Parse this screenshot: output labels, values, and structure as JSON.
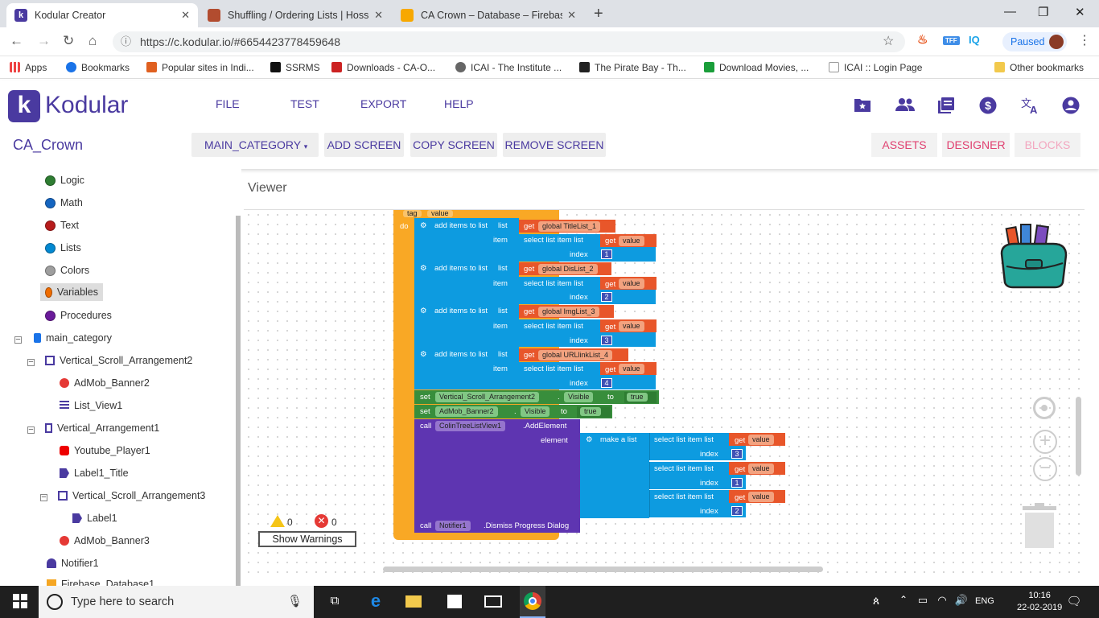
{
  "browser": {
    "tabs": [
      {
        "title": "Kodular Creator",
        "active": true,
        "color": "#4a3aa0"
      },
      {
        "title": "Shuffling / Ordering Lists | Hosse",
        "active": false,
        "color": "#b24c2f"
      },
      {
        "title": "CA Crown – Database – Firebase",
        "active": false,
        "color": "#f7a800"
      }
    ],
    "url": "https://c.kodular.io/#6654423778459648",
    "profile": "Paused",
    "ext_labels": [
      "TFF",
      "IQ"
    ],
    "bookmarks": [
      {
        "label": "Apps",
        "color": "#e44"
      },
      {
        "label": "Bookmarks",
        "color": "#1a73e8"
      },
      {
        "label": "Popular sites in Indi...",
        "color": "#e06020"
      },
      {
        "label": "SSRMS",
        "color": "#111"
      },
      {
        "label": "Downloads - CA-O...",
        "color": "#c22"
      },
      {
        "label": "ICAI - The Institute ...",
        "color": "#666"
      },
      {
        "label": "The Pirate Bay - Th...",
        "color": "#222"
      },
      {
        "label": "Download Movies, ...",
        "color": "#1a9e3a"
      },
      {
        "label": "ICAI :: Login Page",
        "color": "#999"
      },
      {
        "label": "Other bookmarks",
        "color": "#f2c94c"
      }
    ]
  },
  "app": {
    "brand": "Kodular",
    "menu": [
      "FILE",
      "TEST",
      "EXPORT",
      "HELP"
    ],
    "project": "CA_Crown",
    "screen": "MAIN_CATEGORY",
    "screen_caret": "▾",
    "buttons": [
      "ADD SCREEN",
      "COPY SCREEN",
      "REMOVE SCREEN"
    ],
    "right_buttons": [
      {
        "label": "ASSETS",
        "color": "#e04070"
      },
      {
        "label": "DESIGNER",
        "color": "#e04070"
      },
      {
        "label": "BLOCKS",
        "color": "#f3a6bf"
      }
    ],
    "icons": [
      "folder-star-icon",
      "people-icon",
      "book-icon",
      "dollar-icon",
      "translate-icon",
      "account-icon"
    ]
  },
  "sidebar": {
    "builtins": [
      {
        "label": "Logic",
        "color": "#2e7d32"
      },
      {
        "label": "Math",
        "color": "#1565c0"
      },
      {
        "label": "Text",
        "color": "#b71c1c"
      },
      {
        "label": "Lists",
        "color": "#0288d1"
      },
      {
        "label": "Colors",
        "color": "#9e9e9e"
      },
      {
        "label": "Variables",
        "color": "#ef6c00",
        "selected": true
      },
      {
        "label": "Procedures",
        "color": "#6a1b9a"
      }
    ],
    "tree": [
      {
        "label": "main_category",
        "level": 0,
        "expander": true,
        "icon": "phone-icon",
        "color": "#1a73e8"
      },
      {
        "label": "Vertical_Scroll_Arrangement2",
        "level": 1,
        "expander": true,
        "icon": "vscroll-icon",
        "color": "#4a3aa0"
      },
      {
        "label": "AdMob_Banner2",
        "level": 2,
        "expander": false,
        "icon": "admob-icon",
        "color": "#e53935"
      },
      {
        "label": "List_View1",
        "level": 2,
        "expander": false,
        "icon": "list-icon",
        "color": "#4a3aa0"
      },
      {
        "label": "Vertical_Arrangement1",
        "level": 1,
        "expander": true,
        "icon": "varr-icon",
        "color": "#4a3aa0"
      },
      {
        "label": "Youtube_Player1",
        "level": 2,
        "expander": false,
        "icon": "youtube-icon",
        "color": "#e00"
      },
      {
        "label": "Label1_Title",
        "level": 2,
        "expander": false,
        "icon": "label-icon",
        "color": "#4a3aa0"
      },
      {
        "label": "Vertical_Scroll_Arrangement3",
        "level": 2,
        "expander": true,
        "icon": "vscroll-icon",
        "color": "#4a3aa0"
      },
      {
        "label": "Label1",
        "level": 3,
        "expander": false,
        "icon": "label-icon",
        "color": "#4a3aa0"
      },
      {
        "label": "AdMob_Banner3",
        "level": 2,
        "expander": false,
        "icon": "admob-icon",
        "color": "#e53935"
      },
      {
        "label": "Notifier1",
        "level": 1,
        "expander": false,
        "icon": "bell-icon",
        "color": "#4a3aa0"
      },
      {
        "label": "Firebase_Database1",
        "level": 1,
        "expander": false,
        "icon": "firebase-icon",
        "color": "#f5a623"
      }
    ]
  },
  "viewer": {
    "label": "Viewer",
    "event_header": [
      "tag",
      "value"
    ],
    "do_label": "do",
    "add_items": [
      {
        "var": "global TitleList_1",
        "index": "1"
      },
      {
        "var": "global DisList_2",
        "index": "2"
      },
      {
        "var": "global ImgList_3",
        "index": "3"
      },
      {
        "var": "global URLlinkList_4",
        "index": "4"
      }
    ],
    "add_label": "add items to list",
    "list_label": "list",
    "item_label": "item",
    "index_label": "index",
    "select_label": "select list item  list",
    "get_label": "get",
    "value_label": "value",
    "set_blocks": [
      {
        "component": "Vertical_Scroll_Arrangement2",
        "prop": "Visible",
        "to": "true"
      },
      {
        "component": "AdMob_Banner2",
        "prop": "Visible",
        "to": "true"
      }
    ],
    "set_label": "set",
    "to_label": "to",
    "call_label": "call",
    "call_tree": {
      "component": "ColinTreeListView1",
      "method": ".AddElement",
      "element_label": "element",
      "make_list": "make a list",
      "indices": [
        "3",
        "1",
        "2"
      ]
    },
    "call_notifier": {
      "component": "Notifier1",
      "method": ".Dismiss Progress Dialog"
    },
    "warnings": "0",
    "errors": "0",
    "show_warnings": "Show Warnings"
  },
  "taskbar": {
    "search": "Type here to search",
    "time": "10:16",
    "date": "22-02-2019",
    "lang": "ENG"
  }
}
